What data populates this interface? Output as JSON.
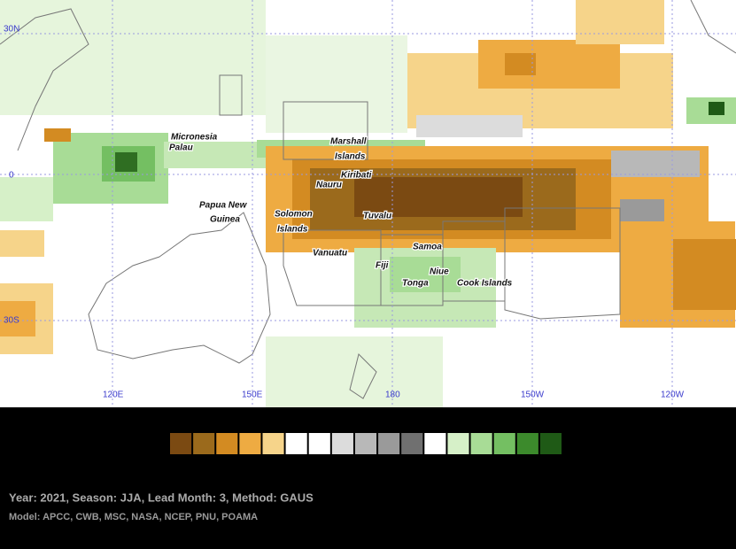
{
  "map": {
    "coordinates": [
      "30N",
      "0",
      "30S",
      "120E",
      "150E",
      "180",
      "150W",
      "120W"
    ],
    "places": [
      "Micronesia",
      "Palau",
      "Marshall",
      "Islands",
      "Kiribati",
      "Nauru",
      "Papua New",
      "Guinea",
      "Solomon",
      "Islands",
      "Tuvalu",
      "Samoa",
      "Vanuatu",
      "Fiji",
      "Niue",
      "Tonga",
      "Cook Islands"
    ],
    "legend_colors": [
      "#7b4a12",
      "#9b6a1c",
      "#d38b22",
      "#eeab42",
      "#f6d48a",
      "#ffffff",
      "#ffffff",
      "#dcdcdc",
      "#b8b8b8",
      "#9a9a9a",
      "#707070",
      "#ffffff",
      "#d6f0c8",
      "#a8dc96",
      "#74bf62",
      "#3c8a2c",
      "#1f5a16"
    ]
  },
  "footer": {
    "line1": "Year: 2021, Season: JJA, Lead Month: 3, Method: GAUS",
    "line2": "Model: APCC, CWB, MSC, NASA, NCEP, PNU, POAMA"
  }
}
